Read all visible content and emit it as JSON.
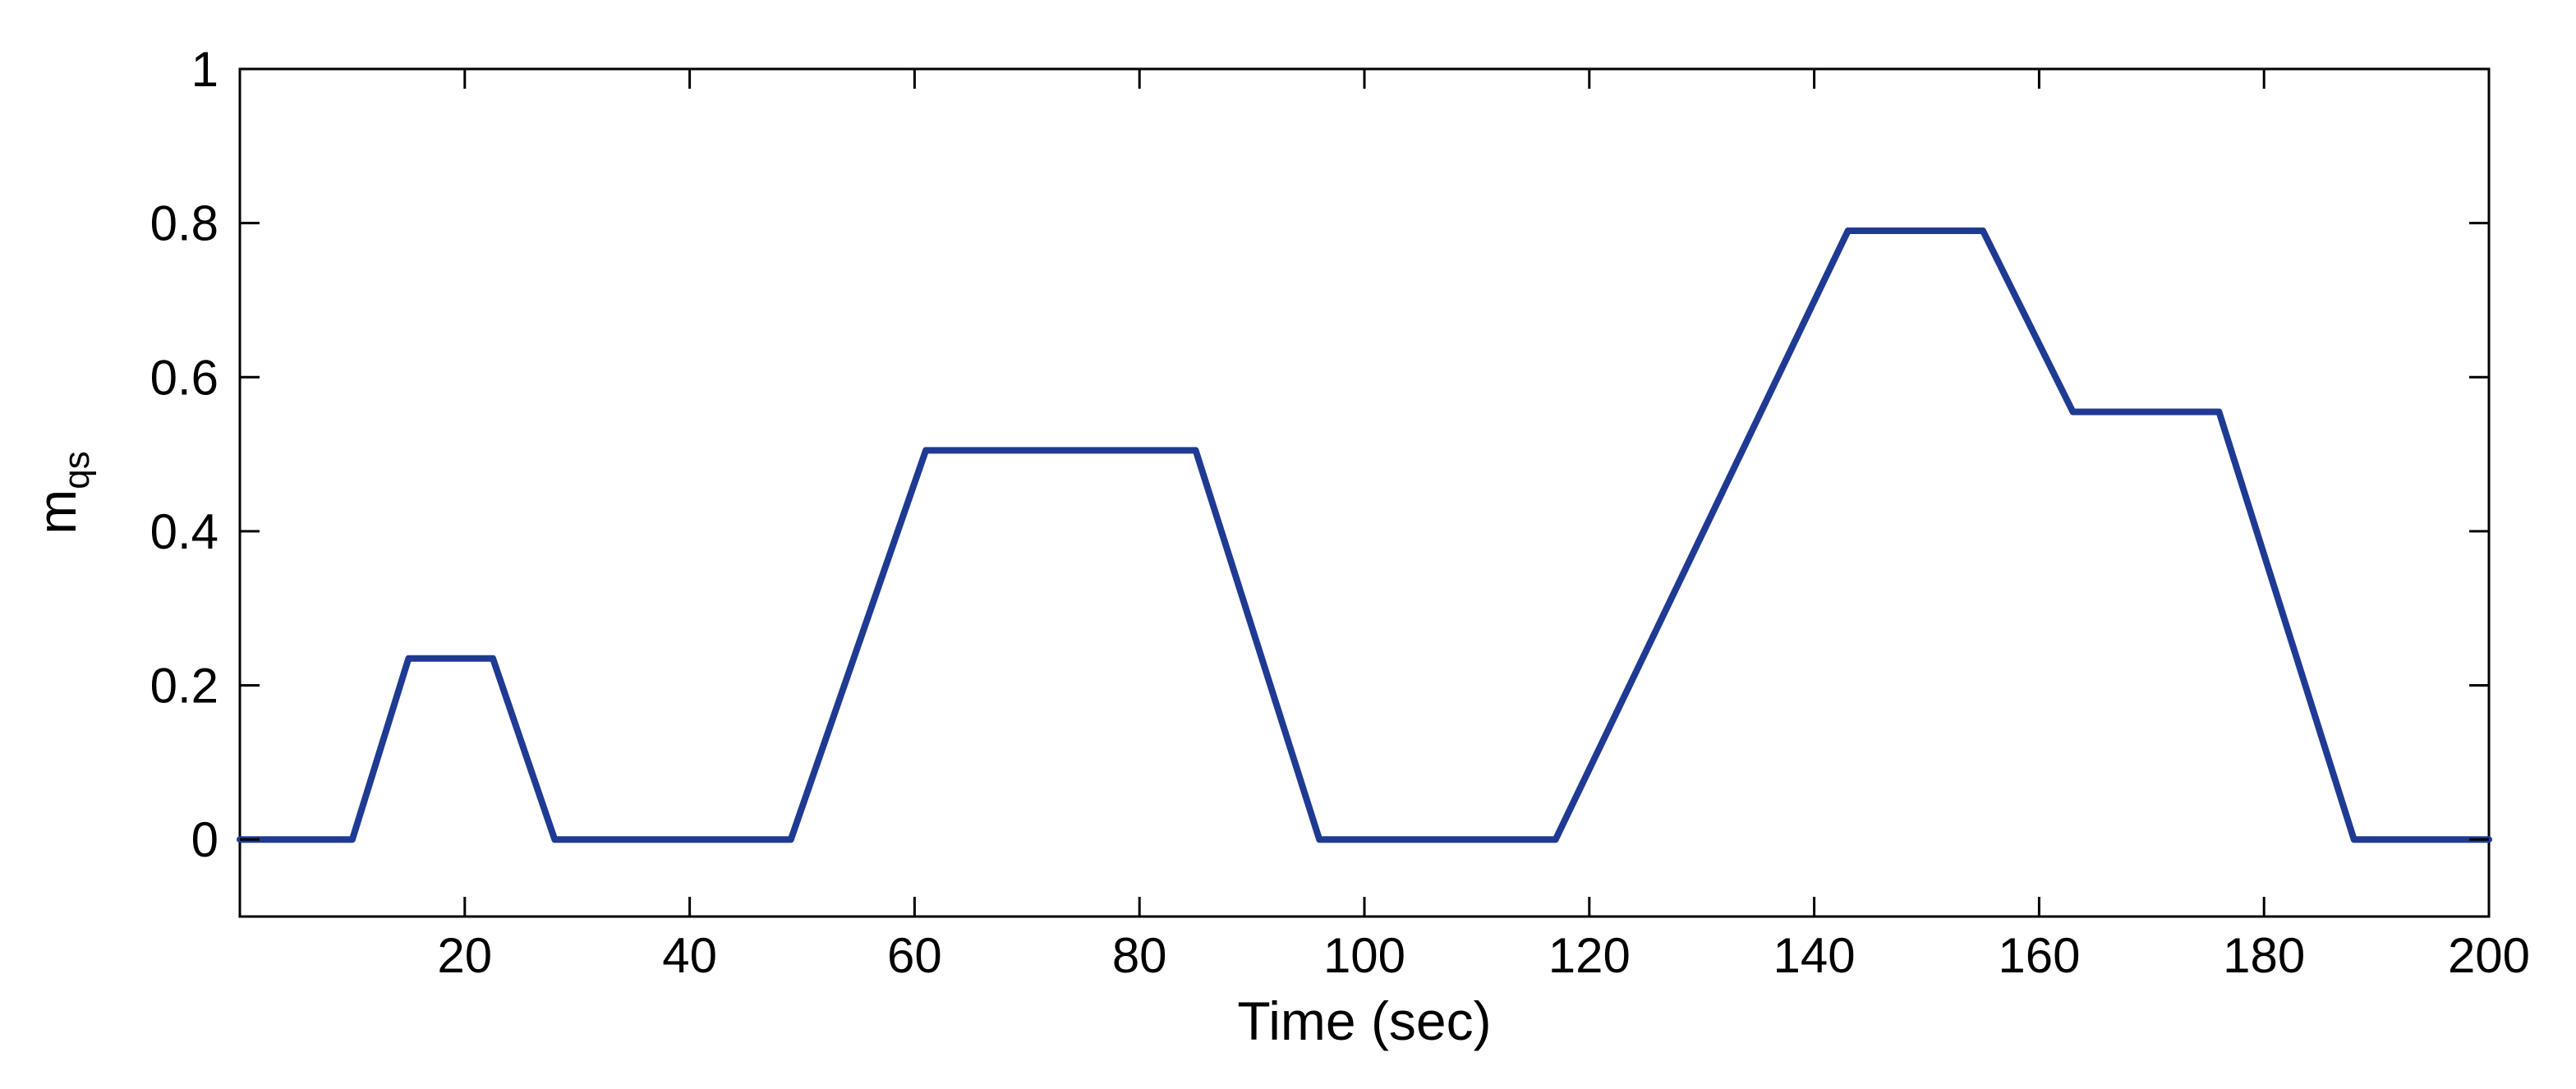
{
  "chart_data": {
    "type": "line",
    "title": "",
    "xlabel": "Time (sec)",
    "ylabel": {
      "main": "m",
      "subscript": "qs"
    },
    "xlim": [
      0,
      200
    ],
    "ylim": [
      -0.1,
      1
    ],
    "xticks": [
      20,
      40,
      60,
      80,
      100,
      120,
      140,
      160,
      180,
      200
    ],
    "yticks": [
      0,
      0.2,
      0.4,
      0.6,
      0.8,
      1
    ],
    "ytick_labels": [
      "0",
      "0.2",
      "0.4",
      "0.6",
      "0.8",
      "1"
    ],
    "grid": false,
    "box": true,
    "legend": "none",
    "line_color": "#1f3a93",
    "series": [
      {
        "x": [
          0,
          10,
          15,
          22.5,
          28,
          49,
          61,
          85,
          96,
          117,
          143,
          155,
          163,
          176,
          188,
          200
        ],
        "y": [
          0,
          0,
          0.235,
          0.235,
          0,
          0,
          0.505,
          0.505,
          0,
          0,
          0.79,
          0.79,
          0.555,
          0.555,
          0,
          0
        ]
      }
    ]
  }
}
